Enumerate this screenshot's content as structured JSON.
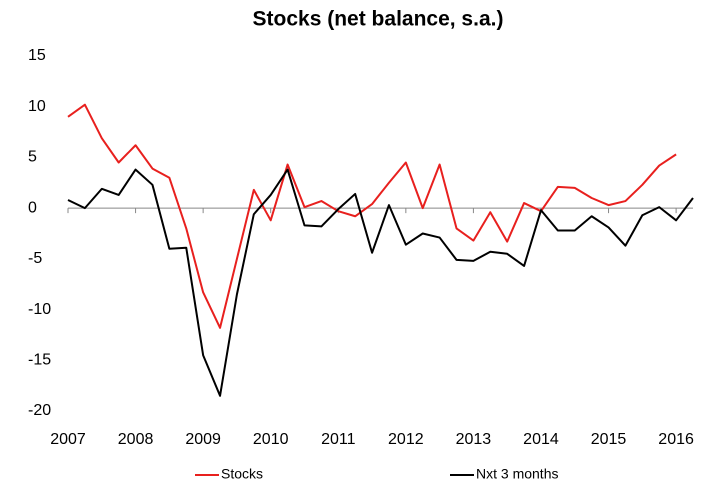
{
  "chart_data": {
    "type": "line",
    "title": "Stocks (net balance, s.a.)",
    "x": [
      2007,
      2007.25,
      2007.5,
      2007.75,
      2008,
      2008.25,
      2008.5,
      2008.75,
      2009,
      2009.25,
      2009.5,
      2009.75,
      2010,
      2010.25,
      2010.5,
      2010.75,
      2011,
      2011.25,
      2011.5,
      2011.75,
      2012,
      2012.25,
      2012.5,
      2012.75,
      2013,
      2013.25,
      2013.5,
      2013.75,
      2014,
      2014.25,
      2014.5,
      2014.75,
      2015,
      2015.25,
      2015.5,
      2015.75,
      2016,
      2016.25
    ],
    "series": [
      {
        "name": "Stocks",
        "color": "#e8201e",
        "values": [
          9.0,
          10.2,
          6.9,
          4.5,
          6.2,
          3.9,
          3.0,
          -2.0,
          -8.3,
          -11.8,
          -5.0,
          1.8,
          -1.2,
          4.3,
          0.1,
          0.7,
          -0.3,
          -0.8,
          0.4,
          2.5,
          4.5,
          0.0,
          4.3,
          -2.0,
          -3.2,
          -0.4,
          -3.3,
          0.5,
          -0.3,
          2.1,
          2.0,
          1.0,
          0.3,
          0.7,
          2.3,
          4.2,
          5.3,
          null
        ]
      },
      {
        "name": "Nxt 3 months",
        "color": "#000000",
        "values": [
          0.8,
          0.0,
          1.9,
          1.3,
          3.8,
          2.3,
          -4.0,
          -3.9,
          -14.5,
          -18.5,
          -8.5,
          -0.6,
          1.3,
          3.8,
          -1.7,
          -1.8,
          -0.1,
          1.4,
          -4.4,
          0.3,
          -3.6,
          -2.5,
          -2.9,
          -5.1,
          -5.2,
          -4.3,
          -4.5,
          -5.7,
          -0.2,
          -2.2,
          -2.2,
          -0.8,
          -1.9,
          -3.7,
          -0.7,
          0.1,
          -1.2,
          1.0
        ]
      }
    ],
    "xlim": [
      2007,
      2016.25
    ],
    "xticks": [
      2007,
      2008,
      2009,
      2010,
      2011,
      2012,
      2013,
      2014,
      2015,
      2016
    ],
    "ylim": [
      -20,
      15
    ],
    "yticks": [
      15,
      10,
      5,
      0,
      -5,
      -10,
      -15,
      -20
    ],
    "grid": false,
    "legend": "bottom"
  }
}
